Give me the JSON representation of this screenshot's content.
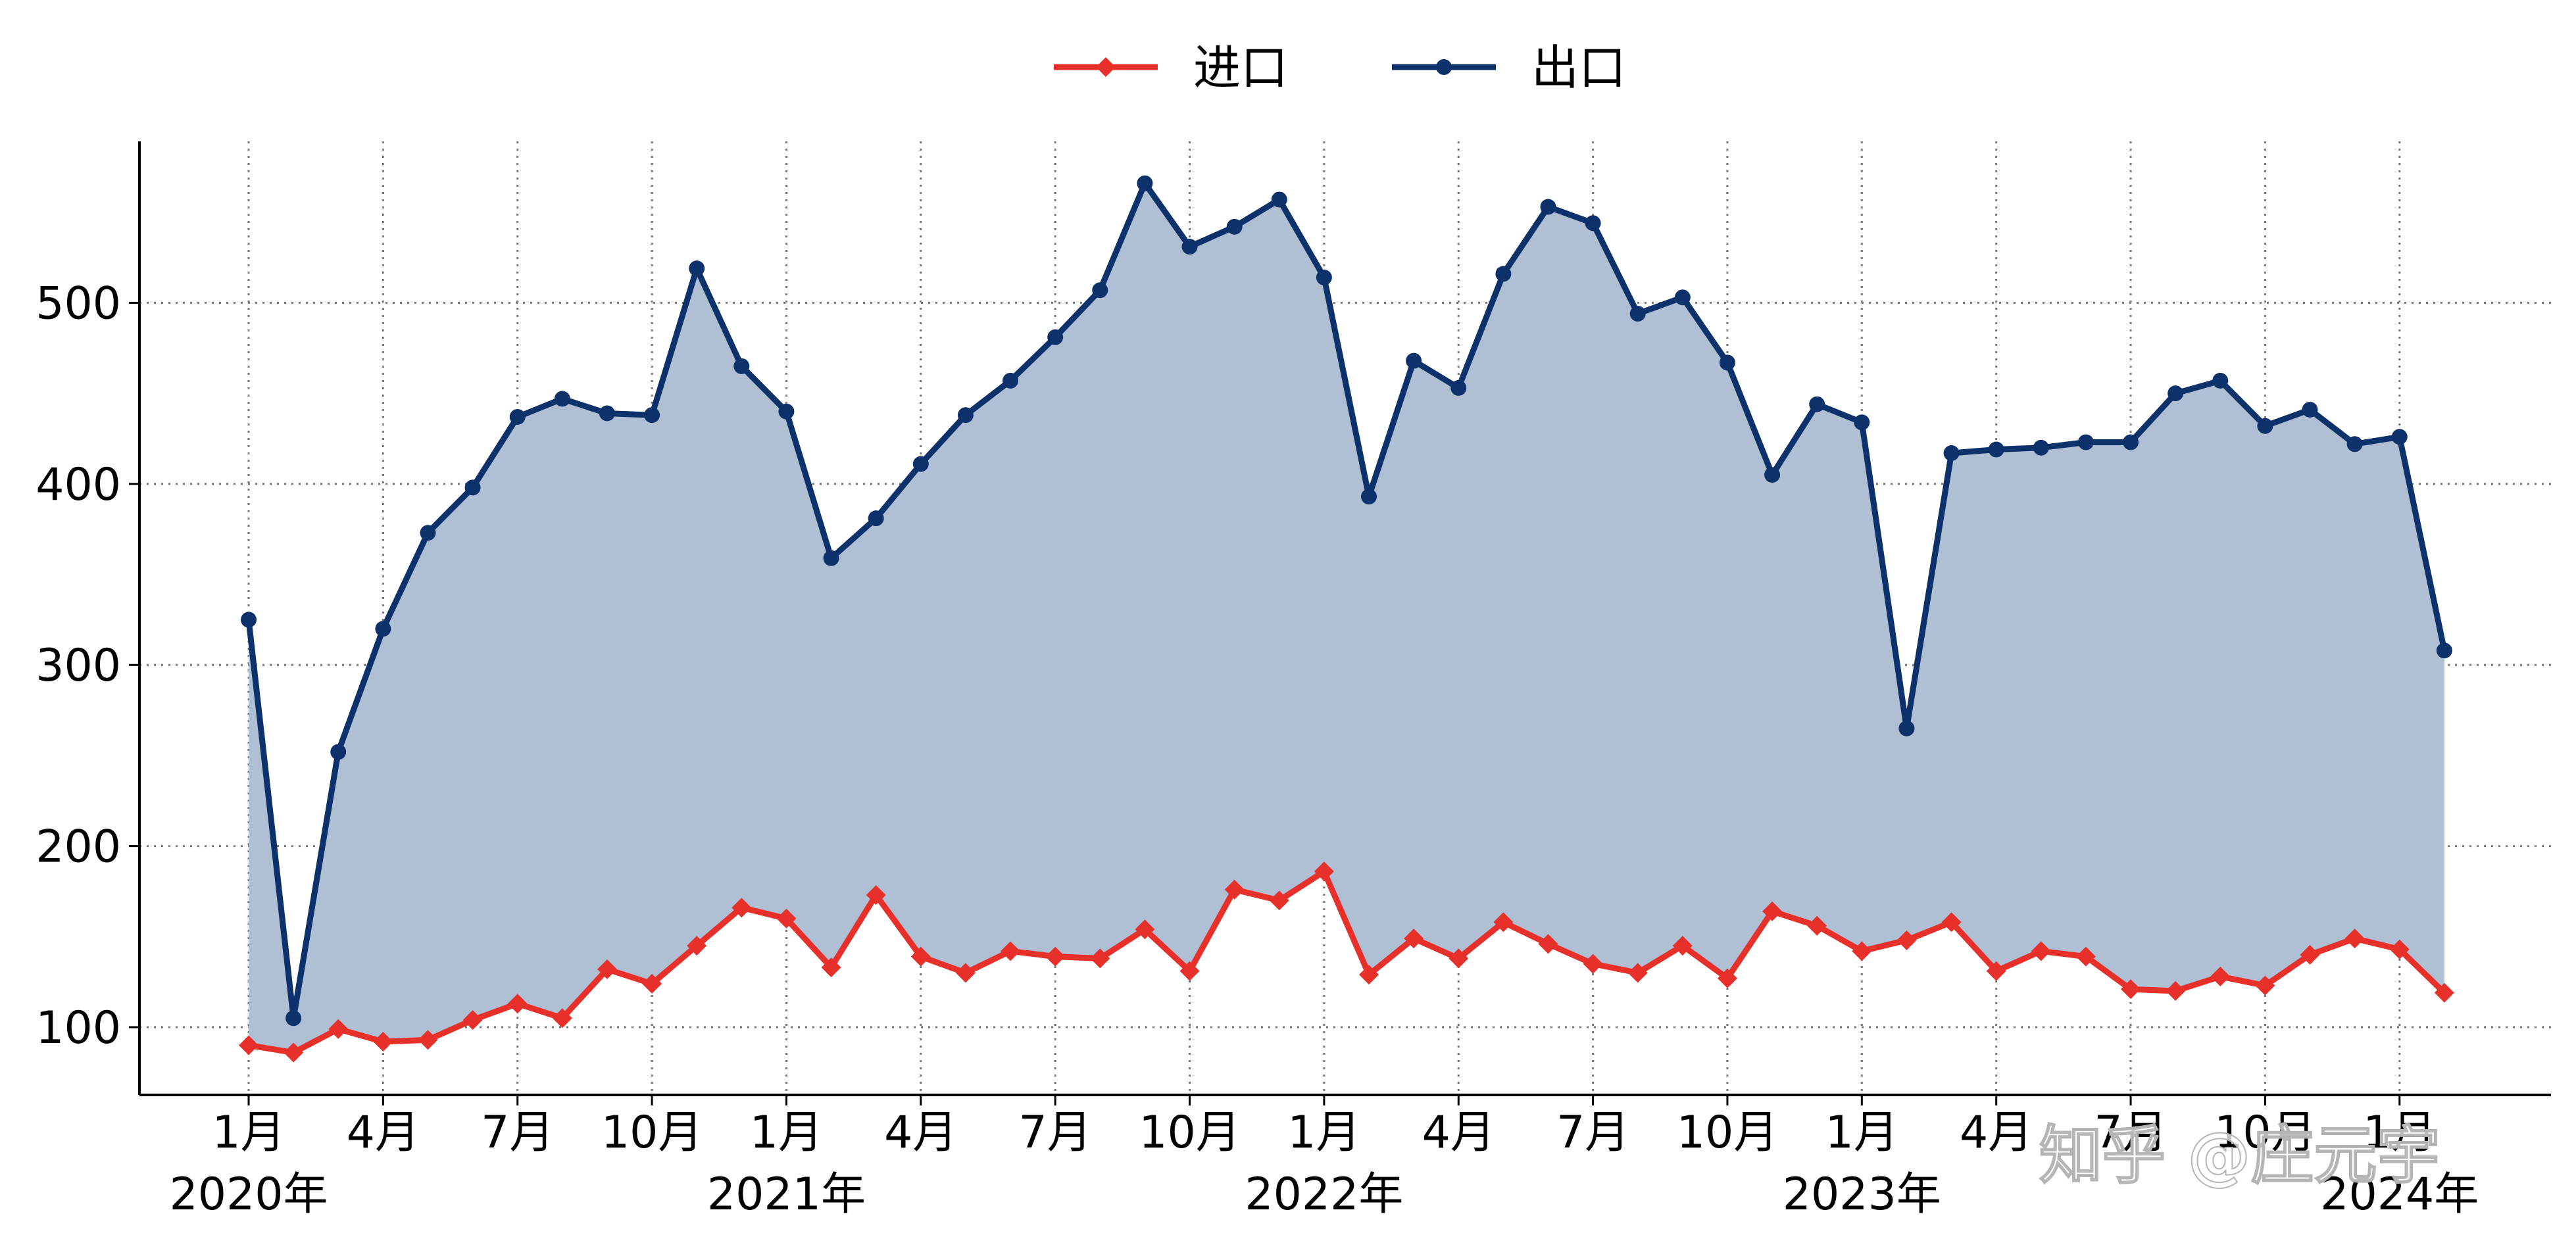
{
  "chart_data": {
    "type": "line",
    "title": "",
    "xlabel": "",
    "ylabel": "",
    "ylim": [
      60,
      590
    ],
    "yticks": [
      100,
      200,
      300,
      400,
      500
    ],
    "grid": true,
    "grid_style": "dotted",
    "legend_position": "top-center",
    "x": [
      "2020-01",
      "2020-02",
      "2020-03",
      "2020-04",
      "2020-05",
      "2020-06",
      "2020-07",
      "2020-08",
      "2020-09",
      "2020-10",
      "2020-11",
      "2020-12",
      "2021-01",
      "2021-02",
      "2021-03",
      "2021-04",
      "2021-05",
      "2021-06",
      "2021-07",
      "2021-08",
      "2021-09",
      "2021-10",
      "2021-11",
      "2021-12",
      "2022-01",
      "2022-02",
      "2022-03",
      "2022-04",
      "2022-05",
      "2022-06",
      "2022-07",
      "2022-08",
      "2022-09",
      "2022-10",
      "2022-11",
      "2022-12",
      "2023-01",
      "2023-02",
      "2023-03",
      "2023-04",
      "2023-05",
      "2023-06",
      "2023-07",
      "2023-08",
      "2023-09",
      "2023-10",
      "2023-11",
      "2023-12",
      "2024-01",
      "2024-02"
    ],
    "x_ticks": [
      {
        "label": "1月",
        "index": 0
      },
      {
        "label": "4月",
        "index": 3
      },
      {
        "label": "7月",
        "index": 6
      },
      {
        "label": "10月",
        "index": 9
      },
      {
        "label": "1月",
        "index": 12
      },
      {
        "label": "4月",
        "index": 15
      },
      {
        "label": "7月",
        "index": 18
      },
      {
        "label": "10月",
        "index": 21
      },
      {
        "label": "1月",
        "index": 24
      },
      {
        "label": "4月",
        "index": 27
      },
      {
        "label": "7月",
        "index": 30
      },
      {
        "label": "10月",
        "index": 33
      },
      {
        "label": "1月",
        "index": 36
      },
      {
        "label": "4月",
        "index": 39
      },
      {
        "label": "7月",
        "index": 42
      },
      {
        "label": "10月",
        "index": 45
      },
      {
        "label": "1月",
        "index": 48
      }
    ],
    "year_labels": [
      {
        "label": "2020年",
        "index": 0
      },
      {
        "label": "2021年",
        "index": 12
      },
      {
        "label": "2022年",
        "index": 24
      },
      {
        "label": "2023年",
        "index": 36
      },
      {
        "label": "2024年",
        "index": 48
      }
    ],
    "series": [
      {
        "name": "进口",
        "color": "#e8302a",
        "marker": "diamond",
        "values": [
          90,
          86,
          99,
          92,
          93,
          104,
          113,
          105,
          132,
          124,
          145,
          166,
          160,
          133,
          173,
          139,
          130,
          142,
          139,
          138,
          154,
          131,
          176,
          170,
          186,
          129,
          149,
          138,
          158,
          146,
          135,
          130,
          145,
          127,
          164,
          156,
          142,
          148,
          158,
          131,
          142,
          139,
          121,
          120,
          128,
          123,
          140,
          149,
          143,
          119
        ]
      },
      {
        "name": "出口",
        "color": "#0d326b",
        "fill_color": "#b0c0d4",
        "marker": "circle",
        "values": [
          325,
          105,
          252,
          320,
          373,
          398,
          437,
          447,
          439,
          438,
          519,
          465,
          440,
          359,
          381,
          411,
          438,
          457,
          481,
          507,
          566,
          531,
          542,
          557,
          514,
          393,
          468,
          453,
          516,
          553,
          544,
          494,
          503,
          467,
          405,
          444,
          434,
          265,
          417,
          419,
          420,
          423,
          423,
          450,
          457,
          432,
          441,
          422,
          426,
          308
        ]
      }
    ],
    "watermark": "知乎 @庄元宇"
  }
}
